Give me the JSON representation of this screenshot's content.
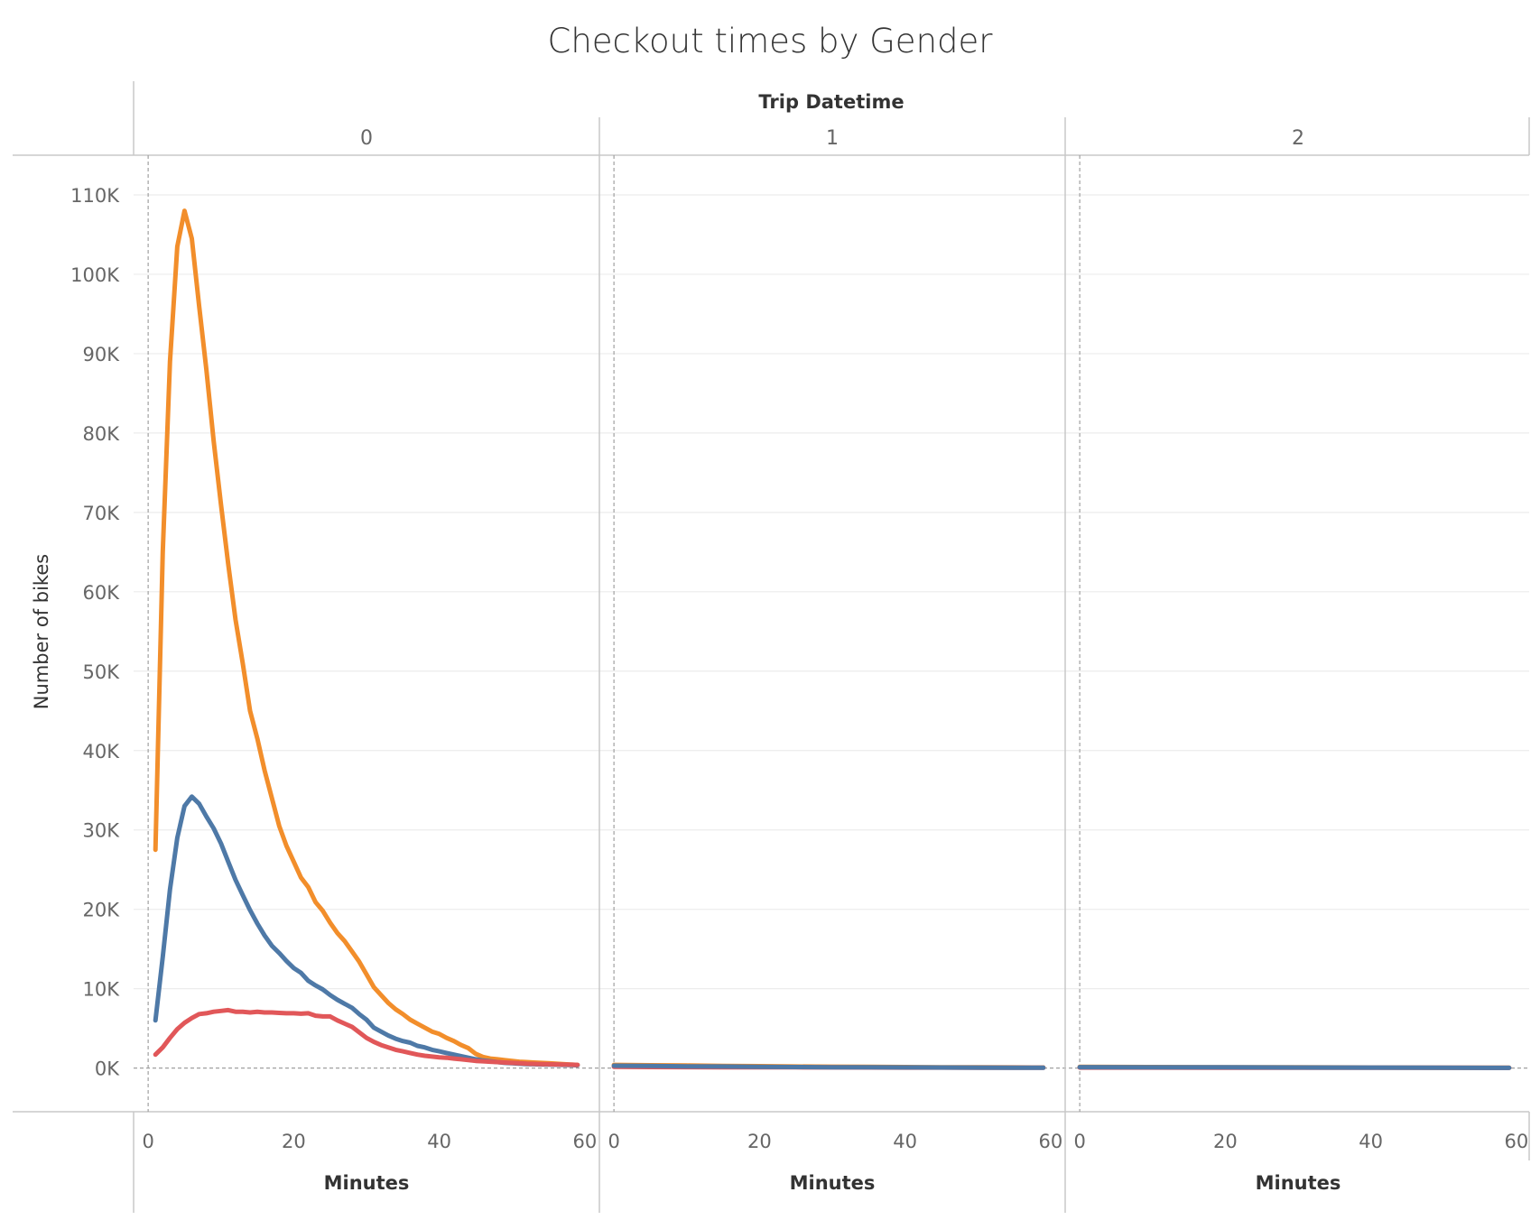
{
  "chart_data": {
    "type": "line",
    "title": "Checkout times by Gender",
    "column_header_title": "Trip Datetime",
    "panels": [
      {
        "label": "0",
        "series": [
          {
            "color": "#f28e2b",
            "x": [
              1,
              2,
              3,
              4,
              5,
              6,
              7,
              8,
              9,
              10,
              11,
              12,
              13,
              14,
              15,
              16,
              17,
              18,
              19,
              20,
              21,
              22,
              23,
              24,
              25,
              26,
              27,
              28,
              29,
              30,
              31,
              32,
              33,
              34,
              35,
              36,
              37,
              38,
              39,
              40,
              41,
              42,
              43,
              44,
              45,
              46,
              47,
              48,
              49,
              50,
              51,
              52,
              53,
              54,
              55,
              56,
              57,
              58,
              59
            ],
            "y": [
              27500,
              65000,
              89000,
              103500,
              108000,
              104500,
              96000,
              88000,
              79000,
              71000,
              63500,
              56500,
              51000,
              45000,
              41500,
              37500,
              34000,
              30500,
              28000,
              26000,
              24000,
              22800,
              20900,
              19800,
              18300,
              17000,
              16000,
              14700,
              13400,
              11800,
              10200,
              9200,
              8200,
              7400,
              6800,
              6100,
              5600,
              5100,
              4600,
              4300,
              3800,
              3400,
              2900,
              2500,
              1800,
              1400,
              1200,
              1100,
              1000,
              900,
              800,
              750,
              700,
              650,
              600,
              550,
              500,
              450,
              400
            ]
          },
          {
            "color": "#4e79a7",
            "x": [
              1,
              2,
              3,
              4,
              5,
              6,
              7,
              8,
              9,
              10,
              11,
              12,
              13,
              14,
              15,
              16,
              17,
              18,
              19,
              20,
              21,
              22,
              23,
              24,
              25,
              26,
              27,
              28,
              29,
              30,
              31,
              32,
              33,
              34,
              35,
              36,
              37,
              38,
              39,
              40,
              41,
              42,
              43,
              44,
              45,
              46,
              47,
              48,
              49,
              50,
              51,
              52,
              53,
              54,
              55,
              56,
              57,
              58,
              59
            ],
            "y": [
              6000,
              14000,
              22500,
              29000,
              33000,
              34200,
              33300,
              31700,
              30200,
              28300,
              26000,
              23700,
              21800,
              19900,
              18200,
              16700,
              15400,
              14500,
              13500,
              12600,
              12000,
              11000,
              10400,
              9900,
              9200,
              8600,
              8100,
              7600,
              6800,
              6100,
              5100,
              4600,
              4100,
              3700,
              3400,
              3200,
              2800,
              2600,
              2300,
              2100,
              1900,
              1700,
              1500,
              1300,
              1100,
              950,
              850,
              750,
              650,
              600,
              550,
              500,
              480,
              460,
              440,
              420,
              400,
              380,
              360
            ]
          },
          {
            "color": "#e15759",
            "x": [
              1,
              2,
              3,
              4,
              5,
              6,
              7,
              8,
              9,
              10,
              11,
              12,
              13,
              14,
              15,
              16,
              17,
              18,
              19,
              20,
              21,
              22,
              23,
              24,
              25,
              26,
              27,
              28,
              29,
              30,
              31,
              32,
              33,
              34,
              35,
              36,
              37,
              38,
              39,
              40,
              41,
              42,
              43,
              44,
              45,
              46,
              47,
              48,
              49,
              50,
              51,
              52,
              53,
              54,
              55,
              56,
              57,
              58,
              59
            ],
            "y": [
              1700,
              2600,
              3800,
              4900,
              5700,
              6300,
              6800,
              6900,
              7100,
              7200,
              7300,
              7100,
              7100,
              7000,
              7100,
              7000,
              7000,
              6950,
              6900,
              6900,
              6850,
              6900,
              6600,
              6500,
              6500,
              6000,
              5600,
              5200,
              4500,
              3800,
              3300,
              2900,
              2600,
              2300,
              2100,
              1900,
              1700,
              1550,
              1450,
              1350,
              1300,
              1200,
              1100,
              1000,
              900,
              850,
              800,
              750,
              700,
              650,
              600,
              550,
              520,
              500,
              480,
              460,
              440,
              420,
              400
            ]
          }
        ]
      },
      {
        "label": "1",
        "series": [
          {
            "color": "#f28e2b",
            "x": [
              0,
              5,
              10,
              15,
              20,
              25,
              30,
              35,
              40,
              45,
              50,
              55,
              59
            ],
            "y": [
              400,
              360,
              320,
              280,
              240,
              200,
              170,
              150,
              130,
              110,
              90,
              80,
              70
            ]
          },
          {
            "color": "#e15759",
            "x": [
              0,
              5,
              10,
              15,
              20,
              25,
              30,
              35,
              40,
              45,
              50,
              55,
              59
            ],
            "y": [
              150,
              130,
              120,
              110,
              100,
              90,
              80,
              70,
              60,
              55,
              50,
              45,
              40
            ]
          },
          {
            "color": "#4e79a7",
            "x": [
              0,
              5,
              10,
              15,
              20,
              25,
              30,
              35,
              40,
              45,
              50,
              55,
              59
            ],
            "y": [
              300,
              260,
              220,
              190,
              160,
              130,
              110,
              90,
              80,
              70,
              60,
              50,
              40
            ]
          }
        ]
      },
      {
        "label": "2",
        "series": [
          {
            "color": "#f28e2b",
            "x": [
              0,
              10,
              20,
              30,
              40,
              50,
              59
            ],
            "y": [
              150,
              130,
              110,
              90,
              70,
              50,
              40
            ]
          },
          {
            "color": "#e15759",
            "x": [
              0,
              10,
              20,
              30,
              40,
              50,
              59
            ],
            "y": [
              60,
              55,
              50,
              45,
              40,
              35,
              30
            ]
          },
          {
            "color": "#4e79a7",
            "x": [
              0,
              10,
              20,
              30,
              40,
              50,
              59
            ],
            "y": [
              120,
              110,
              90,
              70,
              60,
              40,
              30
            ]
          }
        ]
      }
    ],
    "ylabel": "Number of bikes",
    "xlabel": "Minutes",
    "ylim": [
      -5500,
      115000
    ],
    "xlim": [
      -2,
      62
    ],
    "yticks": [
      0,
      10000,
      20000,
      30000,
      40000,
      50000,
      60000,
      70000,
      80000,
      90000,
      100000,
      110000
    ],
    "ytick_labels": [
      "0K",
      "10K",
      "20K",
      "30K",
      "40K",
      "50K",
      "60K",
      "70K",
      "80K",
      "90K",
      "100K",
      "110K"
    ],
    "xticks": [
      0,
      20,
      40,
      60
    ],
    "xtick_labels": [
      "0",
      "20",
      "40",
      "60"
    ],
    "grid": "horizontal"
  }
}
